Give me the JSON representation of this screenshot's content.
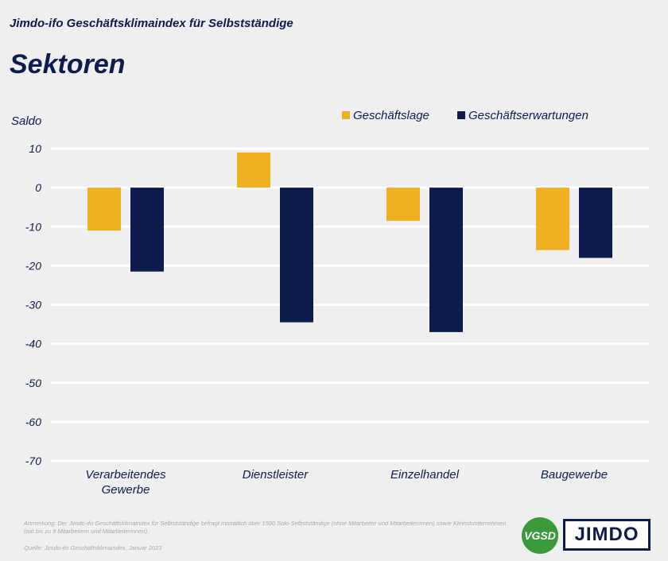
{
  "header": {
    "subtitle": "Jimdo-ifo Geschäftsklimaindex für  Selbstständige",
    "title": "Sektoren"
  },
  "chart_data": {
    "type": "bar",
    "ylabel": "Saldo",
    "ylim": [
      -70,
      10
    ],
    "yticks": [
      10,
      0,
      -10,
      -20,
      -30,
      -40,
      -50,
      -60,
      -70
    ],
    "categories": [
      [
        "Verarbeitendes",
        "Gewerbe"
      ],
      [
        "Dienstleister"
      ],
      [
        "Einzelhandel"
      ],
      [
        "Baugewerbe"
      ]
    ],
    "series": [
      {
        "name": "Geschäftslage",
        "color": "#eeb020",
        "values": [
          -11,
          9,
          -8.5,
          -16
        ]
      },
      {
        "name": "Geschäftserwartungen",
        "color": "#0d1b4d",
        "values": [
          -21.5,
          -34.5,
          -37,
          -18
        ]
      }
    ],
    "legend_position": "top-right",
    "grid": true
  },
  "footer": {
    "note": "Anmerkung: Der Jimdo-ifo Geschäftsklimaindex für Selbstständige befragt monatlich über 1500 Solo-Selbstständige (ohne Mitarbeiter und Mitarbeiterinnen) sowie Kleinstunternehmen (mit bis zu 9 Mitarbeitern und Mitarbeiterinnen).",
    "source": "Quelle: Jimdo-ifo Geschäftsklimaindex, Januar 2023"
  },
  "logos": {
    "vgsd": "VGSD",
    "jimdo": "JIMDO"
  }
}
